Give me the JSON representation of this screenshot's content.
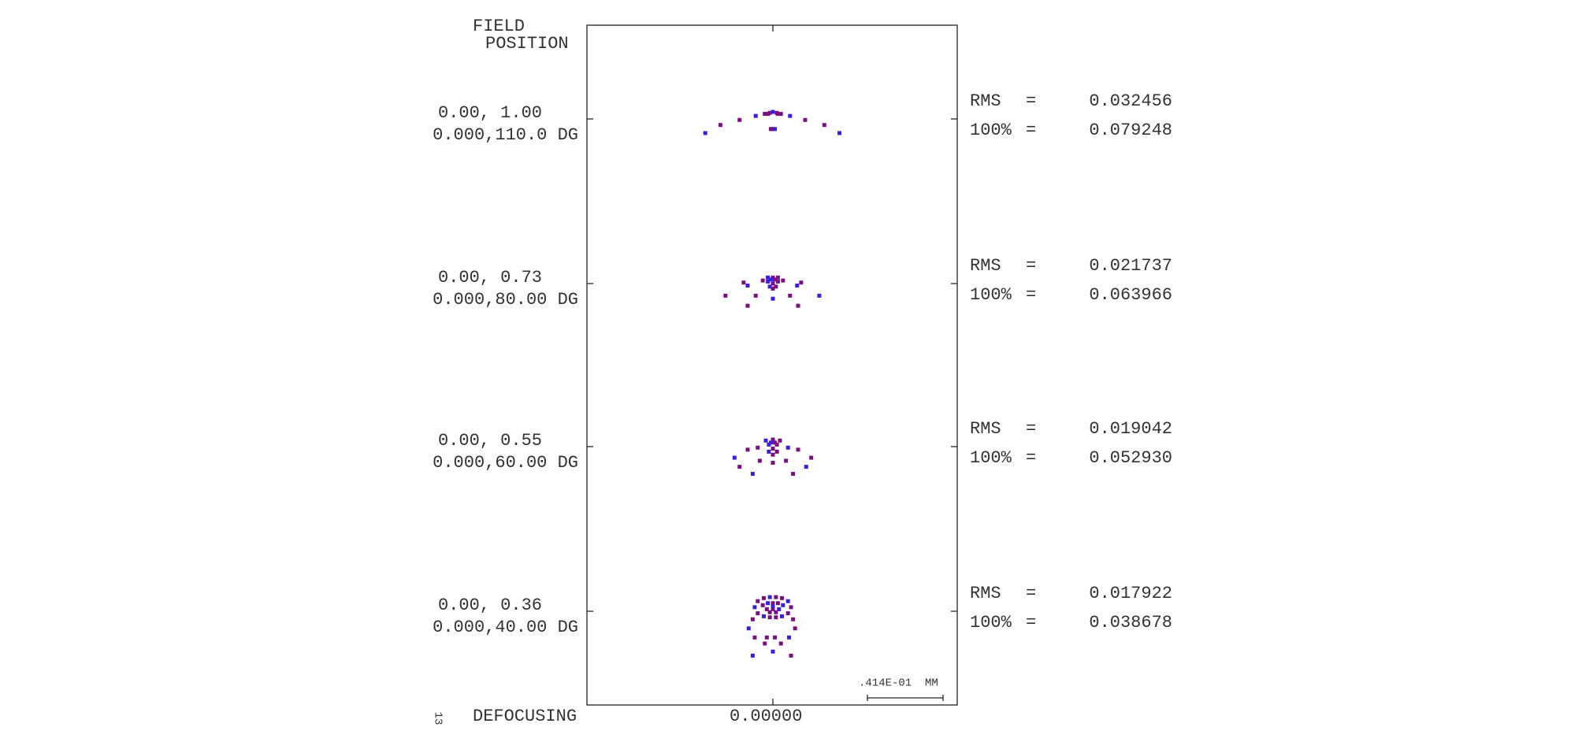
{
  "header": {
    "title_line1": "FIELD",
    "title_line2": "POSITION"
  },
  "fields": [
    {
      "rel": "0.00, 1.00",
      "abs": "0.000,110.0 DG",
      "rms_label": "RMS",
      "rms_eq": "=",
      "rms": "0.032456",
      "full_label": "100%",
      "full_eq": "=",
      "full": "0.079248"
    },
    {
      "rel": "0.00, 0.73",
      "abs": "0.000,80.00 DG",
      "rms_label": "RMS",
      "rms_eq": "=",
      "rms": "0.021737",
      "full_label": "100%",
      "full_eq": "=",
      "full": "0.063966"
    },
    {
      "rel": "0.00, 0.55",
      "abs": "0.000,60.00 DG",
      "rms_label": "RMS",
      "rms_eq": "=",
      "rms": "0.019042",
      "full_label": "100%",
      "full_eq": "=",
      "full": "0.052930"
    },
    {
      "rel": "0.00, 0.36",
      "abs": "0.000,40.00 DG",
      "rms_label": "RMS",
      "rms_eq": "=",
      "rms": "0.017922",
      "full_label": "100%",
      "full_eq": "=",
      "full": "0.038678"
    }
  ],
  "scale": ".414E-01  MM",
  "footer": {
    "label": "DEFOCUSING",
    "value": "0.00000"
  },
  "margin_note": "13"
}
